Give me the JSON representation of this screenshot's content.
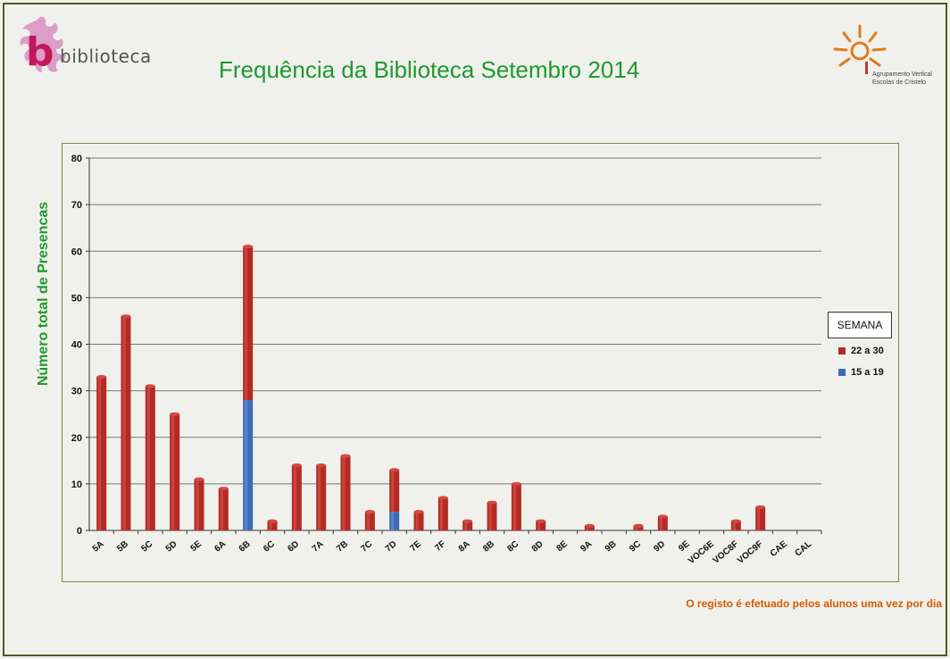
{
  "header": {
    "title": "Frequência da Biblioteca Setembro 2014",
    "left_logo_text": "biblioteca",
    "right_logo_line1": "Agrupamento Vertical",
    "right_logo_line2": "Escolas de Cristelo"
  },
  "footnote": "O registo é efetuado pelos alunos uma vez por dia",
  "colors": {
    "title": "#1e9a2e",
    "red_series": "#b52a22",
    "blue_series": "#3e6bb4",
    "footnote": "#d65a00"
  },
  "chart_data": {
    "type": "bar",
    "stacked": true,
    "title": "Frequência da Biblioteca Setembro 2014",
    "xlabel": "",
    "ylabel": "Número total de Presencas",
    "ylim": [
      0,
      80
    ],
    "yticks": [
      0,
      10,
      20,
      30,
      40,
      50,
      60,
      70,
      80
    ],
    "grid": true,
    "legend_title": "SEMANA",
    "legend_position": "right",
    "categories": [
      "5A",
      "5B",
      "5C",
      "5D",
      "5E",
      "6A",
      "6B",
      "6C",
      "6D",
      "7A",
      "7B",
      "7C",
      "7D",
      "7E",
      "7F",
      "8A",
      "8B",
      "8C",
      "8D",
      "8E",
      "9A",
      "9B",
      "9C",
      "9D",
      "9E",
      "VOC6E",
      "VOC8F",
      "VOC9F",
      "CAE",
      "CAL"
    ],
    "series": [
      {
        "name": "15 a 19",
        "color": "#3e6bb4",
        "values": [
          0,
          0,
          0,
          0,
          0,
          0,
          28,
          0,
          0,
          0,
          0,
          0,
          4,
          0,
          0,
          0,
          0,
          0,
          0,
          0,
          0,
          0,
          0,
          0,
          0,
          0,
          0,
          0,
          0,
          0
        ]
      },
      {
        "name": "22 a 30",
        "color": "#b52a22",
        "values": [
          33,
          46,
          31,
          25,
          11,
          9,
          33,
          2,
          14,
          14,
          16,
          4,
          9,
          4,
          7,
          2,
          6,
          10,
          2,
          0,
          1,
          0,
          1,
          3,
          0,
          0,
          2,
          5,
          0,
          0
        ]
      }
    ]
  }
}
